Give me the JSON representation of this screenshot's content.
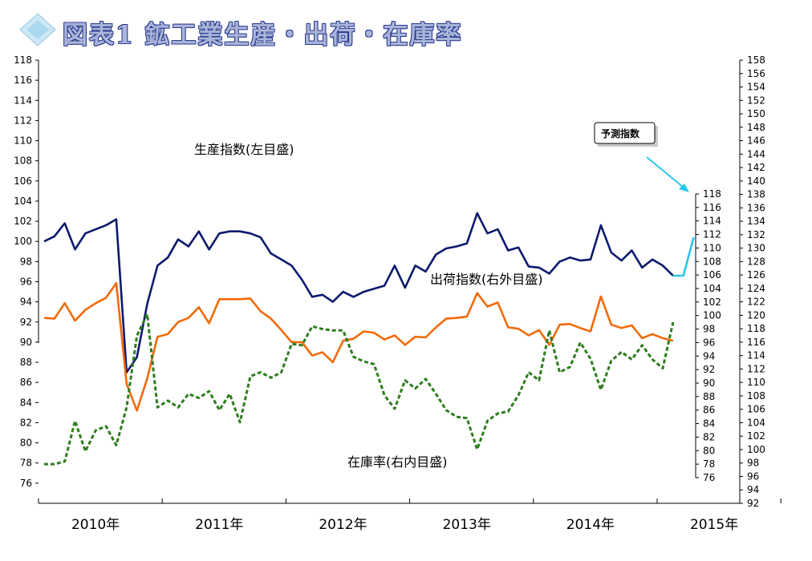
{
  "title": "図表1 鉱工業生産・出荷・在庫率",
  "icons": {
    "title_marker": "diamond-icon"
  },
  "colors": {
    "production": "#0d1a6e",
    "shipment": "#f26a0a",
    "inventory": "#2e7d1e",
    "forecast": "#29c6ea",
    "title": "#a9b4d9"
  },
  "chart_data": {
    "type": "line",
    "x_labels": [
      "2010年",
      "2011年",
      "2012年",
      "2013年",
      "2014年",
      "2015年"
    ],
    "axes": {
      "left": {
        "min": 74,
        "max": 118,
        "step": 2,
        "labels_min": 76
      },
      "right_outer": {
        "min": 92,
        "max": 158,
        "step": 2
      },
      "right_inner": {
        "min": 76,
        "max": 118,
        "step": 2
      }
    },
    "annotations": {
      "production": "生産指数(左目盛)",
      "shipment": "出荷指数(右外目盛)",
      "inventory": "在庫率(右内目盛)",
      "forecast": "予測指数"
    },
    "series": [
      {
        "name": "生産指数(左目盛)",
        "axis": "left",
        "style": "solid",
        "start": "2010-01",
        "values": [
          100.0,
          100.5,
          101.8,
          99.2,
          100.8,
          101.2,
          101.6,
          102.2,
          87.0,
          88.5,
          93.8,
          97.6,
          98.4,
          100.2,
          99.5,
          101.0,
          99.2,
          100.8,
          101.0,
          101.0,
          100.8,
          100.4,
          98.8,
          98.2,
          97.6,
          96.2,
          94.5,
          94.7,
          94.0,
          95.0,
          94.5,
          95.0,
          95.3,
          95.6,
          97.6,
          95.4,
          97.6,
          97.0,
          98.7,
          99.3,
          99.5,
          99.8,
          102.8,
          100.8,
          101.2,
          99.1,
          99.4,
          97.5,
          97.4,
          96.8,
          98.0,
          98.4,
          98.1,
          98.2,
          101.6,
          98.9,
          98.1,
          99.1,
          97.4,
          98.2,
          97.6,
          96.6
        ]
      },
      {
        "name": "出荷指数(右外目盛)",
        "axis": "right_outer",
        "style": "solid",
        "start": "2010-01",
        "values": [
          119.6,
          119.5,
          121.8,
          119.2,
          120.8,
          121.8,
          122.6,
          124.8,
          109.8,
          105.8,
          110.6,
          116.8,
          117.2,
          119.0,
          119.6,
          121.2,
          118.8,
          122.4,
          122.4,
          122.4,
          122.5,
          120.6,
          119.5,
          117.8,
          116.0,
          116.0,
          114.0,
          114.5,
          113.0,
          116.2,
          116.5,
          117.6,
          117.4,
          116.4,
          117.0,
          115.6,
          116.8,
          116.7,
          118.2,
          119.5,
          119.6,
          119.8,
          123.3,
          121.3,
          121.9,
          118.2,
          118.0,
          117.0,
          117.8,
          115.6,
          118.6,
          118.7,
          118.1,
          117.6,
          122.8,
          118.6,
          118.1,
          118.5,
          116.6,
          117.2,
          116.6,
          116.2
        ]
      },
      {
        "name": "在庫率(右内目盛)",
        "axis": "right_inner",
        "style": "dashed",
        "start": "2010-01",
        "values": [
          78.0,
          78.0,
          78.4,
          84.4,
          79.9,
          83.0,
          83.6,
          80.8,
          86.4,
          97.0,
          100.2,
          86.4,
          87.4,
          86.4,
          88.4,
          87.8,
          88.8,
          86.0,
          88.4,
          84.2,
          91.0,
          91.6,
          90.8,
          91.6,
          95.8,
          95.6,
          98.4,
          98.0,
          97.8,
          97.8,
          93.9,
          93.2,
          92.8,
          88.2,
          86.2,
          90.4,
          89.2,
          90.6,
          88.4,
          86.0,
          85.0,
          84.8,
          80.2,
          84.4,
          85.5,
          85.8,
          88.2,
          91.6,
          90.4,
          97.8,
          91.6,
          92.4,
          96.0,
          93.6,
          89.0,
          93.3,
          94.6,
          93.5,
          95.6,
          93.5,
          92.2,
          99.0
        ]
      },
      {
        "name": "予測指数",
        "axis": "left",
        "style": "solid",
        "start": "2015-02",
        "values": [
          96.6,
          96.6,
          100.4
        ]
      }
    ]
  }
}
